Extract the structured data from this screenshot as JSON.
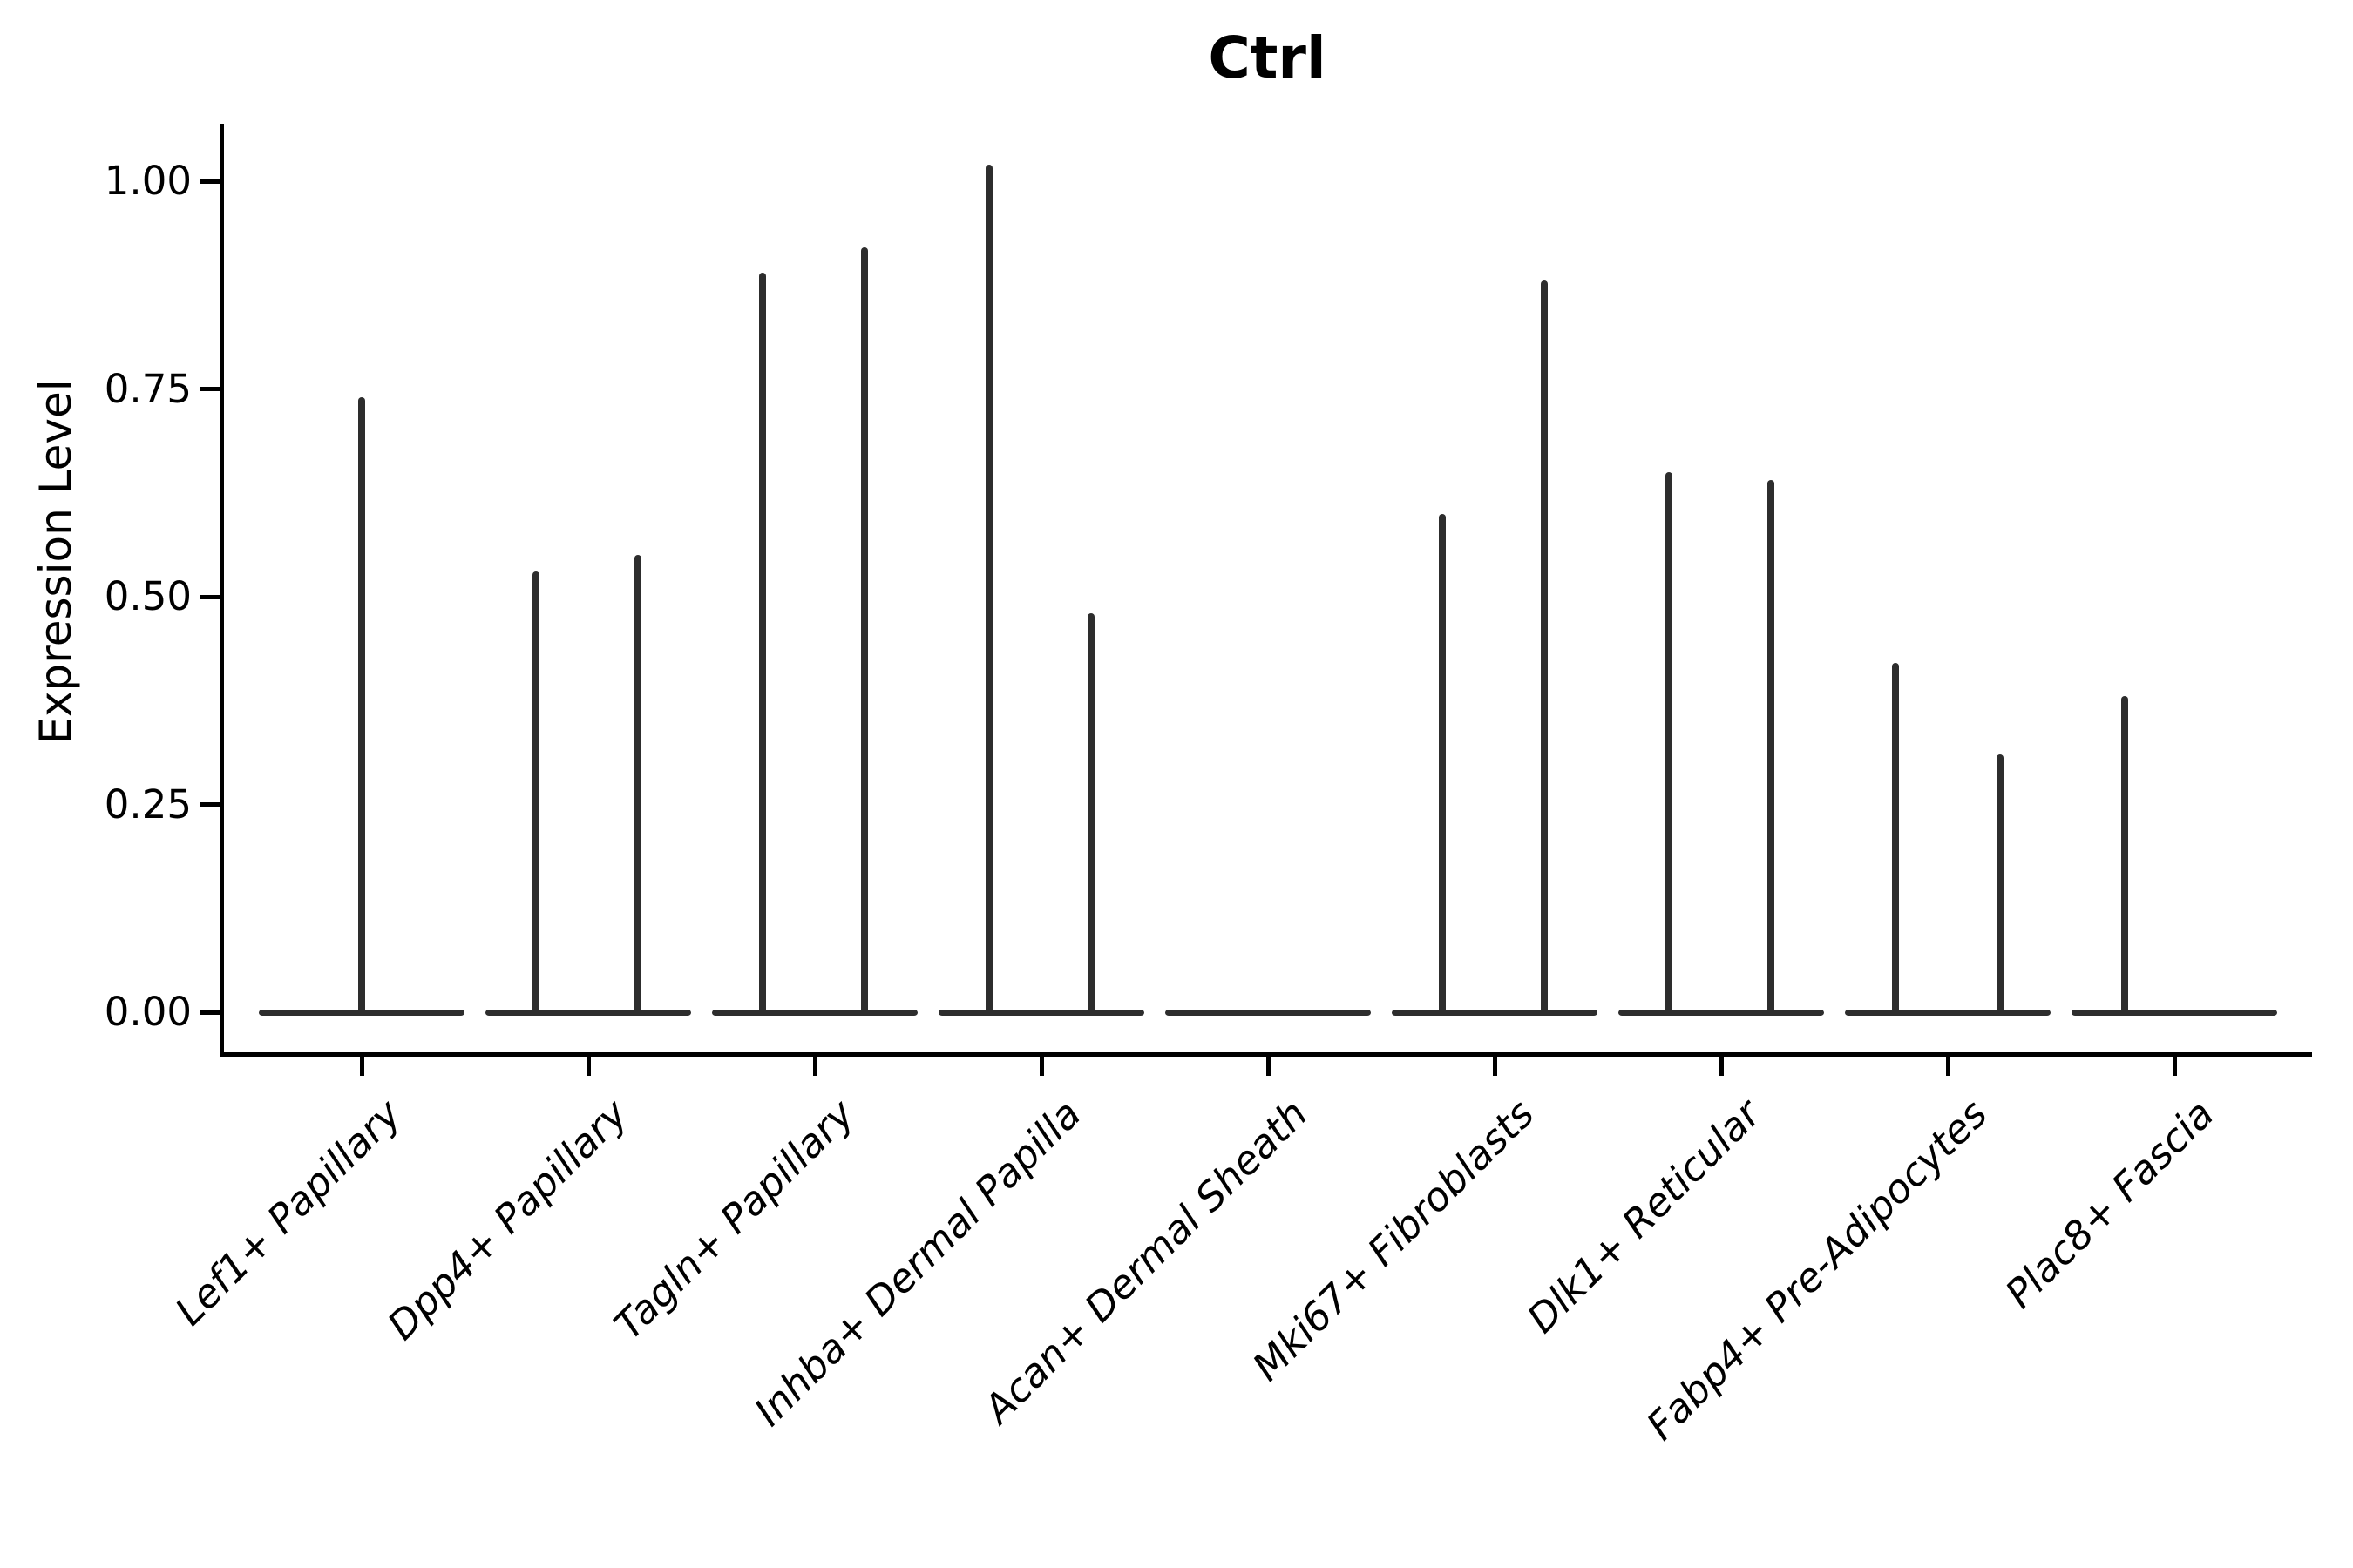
{
  "chart_data": {
    "type": "violin",
    "title": "Ctrl",
    "ylabel": "Expression Level",
    "xlabel": "",
    "categories": [
      "Lef1+ Papillary",
      "Dpp4+ Papillary",
      "Tagln+ Papillary",
      "Inhba+ Dermal Papilla",
      "Acan+ Dermal Sheath",
      "Mki67+ Fibroblasts",
      "Dlk1+ Reticular",
      "Fabp4+ Pre-Adipocytes",
      "Plac8+ Fascia"
    ],
    "series": [
      {
        "category": "Lef1+ Papillary",
        "violins": [
          {
            "offset": 0.0,
            "max_expression": 0.74
          }
        ]
      },
      {
        "category": "Dpp4+ Papillary",
        "violins": [
          {
            "offset": -0.23,
            "max_expression": 0.53
          },
          {
            "offset": 0.22,
            "max_expression": 0.55
          }
        ]
      },
      {
        "category": "Tagln+ Papillary",
        "violins": [
          {
            "offset": -0.23,
            "max_expression": 0.89
          },
          {
            "offset": 0.22,
            "max_expression": 0.92
          }
        ]
      },
      {
        "category": "Inhba+ Dermal Papilla",
        "violins": [
          {
            "offset": -0.23,
            "max_expression": 1.02
          },
          {
            "offset": 0.22,
            "max_expression": 0.48
          }
        ]
      },
      {
        "category": "Acan+ Dermal Sheath",
        "violins": []
      },
      {
        "category": "Mki67+ Fibroblasts",
        "violins": [
          {
            "offset": -0.23,
            "max_expression": 0.6
          },
          {
            "offset": 0.22,
            "max_expression": 0.88
          }
        ]
      },
      {
        "category": "Dlk1+ Reticular",
        "violins": [
          {
            "offset": -0.23,
            "max_expression": 0.65
          },
          {
            "offset": 0.22,
            "max_expression": 0.64
          }
        ]
      },
      {
        "category": "Fabp4+ Pre-Adipocytes",
        "violins": [
          {
            "offset": -0.23,
            "max_expression": 0.42
          },
          {
            "offset": 0.23,
            "max_expression": 0.31
          }
        ]
      },
      {
        "category": "Plac8+ Fascia",
        "violins": [
          {
            "offset": -0.22,
            "max_expression": 0.38
          }
        ]
      }
    ],
    "baseline_halfwidth_frac": 0.455,
    "yticks": {
      "values": [
        0.0,
        0.25,
        0.5,
        0.75,
        1.0
      ],
      "labels": [
        "0.00",
        "0.25",
        "0.50",
        "0.75",
        "1.00"
      ]
    },
    "ylim": [
      -0.05,
      1.07
    ],
    "grid": false,
    "legend": false,
    "colors": {
      "violin": "#2d2d2d",
      "axis": "#000000",
      "text": "#000000",
      "background": "#ffffff"
    }
  }
}
